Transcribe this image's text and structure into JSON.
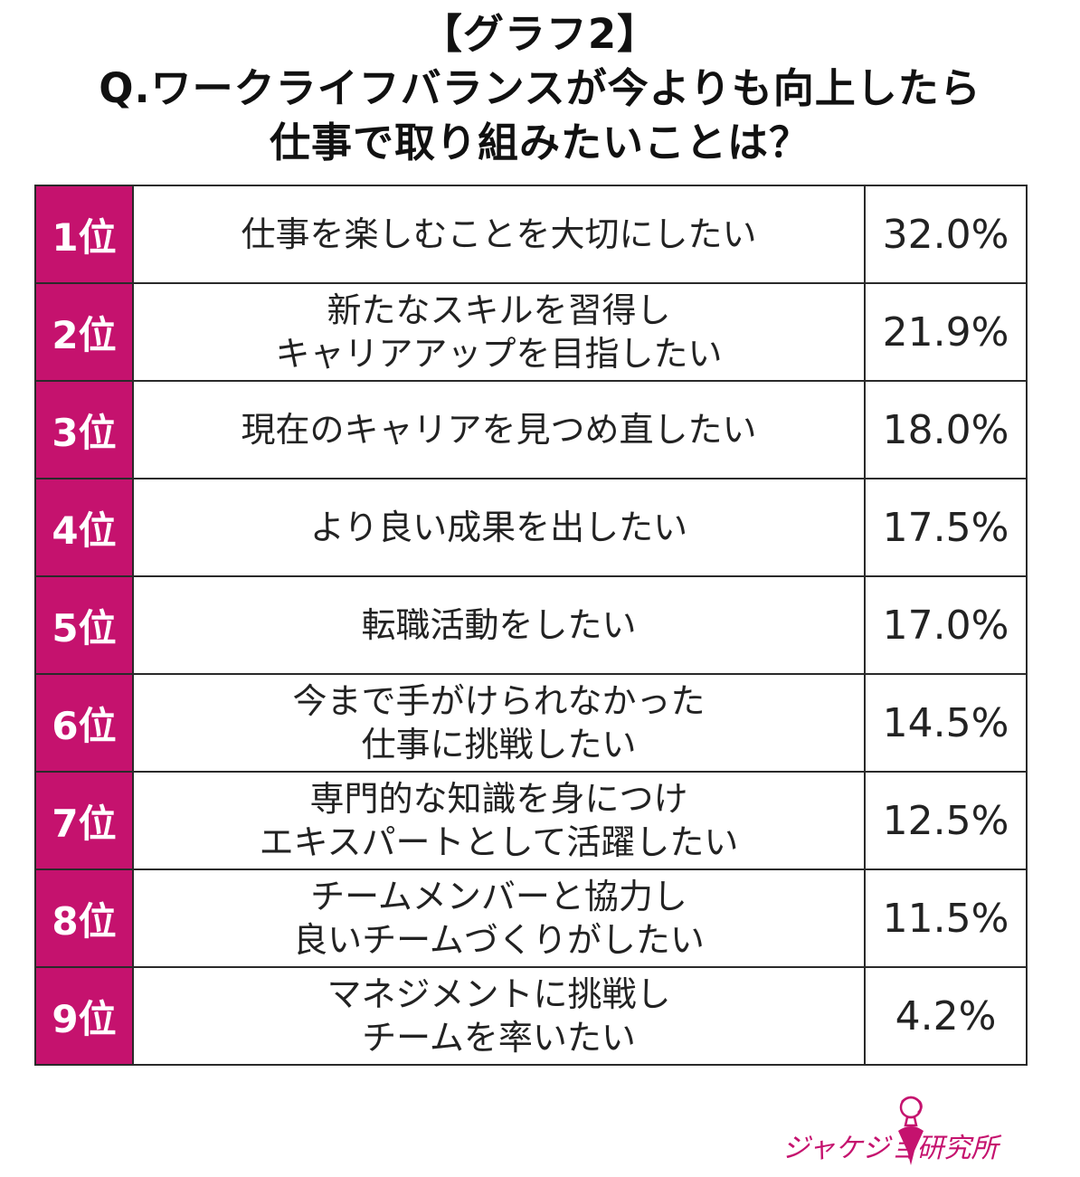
{
  "title": {
    "line1": "【グラフ2】",
    "line2": "Q.ワークライフバランスが今よりも向上したら",
    "line3": "仕事で取り組みたいことは？"
  },
  "chart_data": {
    "type": "table",
    "columns": [
      "rank",
      "item",
      "percent"
    ],
    "rows": [
      {
        "rank": "1位",
        "item": [
          "仕事を楽しむことを大切にしたい"
        ],
        "percent": "32.0%",
        "value": 32.0
      },
      {
        "rank": "2位",
        "item": [
          "新たなスキルを習得し",
          "キャリアアップを目指したい"
        ],
        "percent": "21.9%",
        "value": 21.9
      },
      {
        "rank": "3位",
        "item": [
          "現在のキャリアを見つめ直したい"
        ],
        "percent": "18.0%",
        "value": 18.0
      },
      {
        "rank": "4位",
        "item": [
          "より良い成果を出したい"
        ],
        "percent": "17.5%",
        "value": 17.5
      },
      {
        "rank": "5位",
        "item": [
          "転職活動をしたい"
        ],
        "percent": "17.0%",
        "value": 17.0
      },
      {
        "rank": "6位",
        "item": [
          "今まで手がけられなかった",
          "仕事に挑戦したい"
        ],
        "percent": "14.5%",
        "value": 14.5
      },
      {
        "rank": "7位",
        "item": [
          "専門的な知識を身につけ",
          "エキスパートとして活躍したい"
        ],
        "percent": "12.5%",
        "value": 12.5
      },
      {
        "rank": "8位",
        "item": [
          "チームメンバーと協力し",
          "良いチームづくりがしたい"
        ],
        "percent": "11.5%",
        "value": 11.5
      },
      {
        "rank": "9位",
        "item": [
          "マネジメントに挑戦し",
          "チームを率いたい"
        ],
        "percent": "4.2%",
        "value": 4.2
      }
    ]
  },
  "colors": {
    "rank_bg": "#c5126e",
    "rank_text": "#ffffff",
    "border": "#2a2a2a",
    "logo": "#c5126e"
  },
  "logo": {
    "text": "ジャケジョ研究所",
    "icon": "woman-silhouette-icon"
  }
}
